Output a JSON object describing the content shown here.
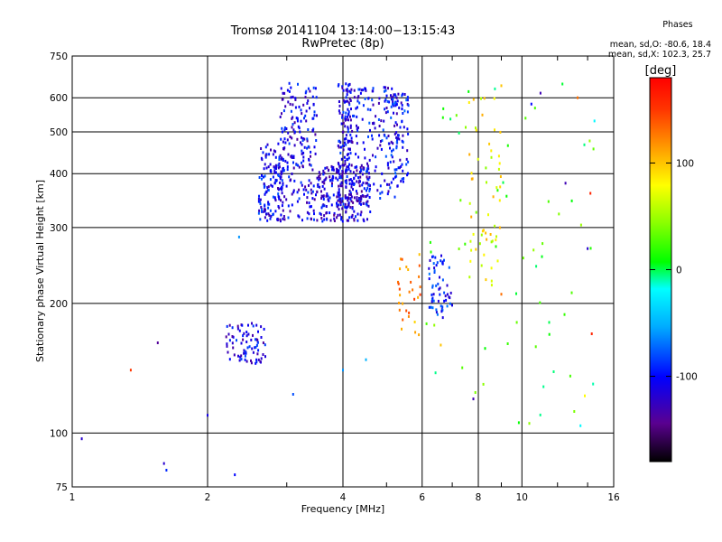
{
  "chart_data": {
    "type": "scatter",
    "title": "Tromsø 20141104  13:14:00−13:15:43",
    "subtitle": "RwPretec (8p)",
    "xlabel": "Frequency [MHz]",
    "ylabel": "Stationary phase Virtual Height [km]",
    "x_scale": "log",
    "y_scale": "log",
    "xlim": [
      1,
      16
    ],
    "ylim": [
      75,
      750
    ],
    "x_ticks": [
      1,
      2,
      4,
      6,
      8,
      10,
      16
    ],
    "y_ticks": [
      75,
      100,
      200,
      300,
      400,
      500,
      600,
      750
    ],
    "grid": true,
    "colorbar": {
      "label": "[deg]",
      "ticks": [
        100,
        0,
        -100
      ],
      "range": [
        -180,
        180
      ]
    },
    "phase_stats": {
      "header": "Phases",
      "line_o": "mean, sd,O: -80.6, 18.4",
      "line_x": "mean, sd,X: 102.3, 25.7"
    },
    "clusters": [
      {
        "freq": [
          2.6,
          2.95
        ],
        "height": [
          310,
          470
        ],
        "phase": -105,
        "n": 140
      },
      {
        "freq": [
          2.9,
          3.5
        ],
        "height": [
          310,
          650
        ],
        "phase": -110,
        "n": 200
      },
      {
        "freq": [
          3.5,
          4.6
        ],
        "height": [
          310,
          420
        ],
        "phase": -115,
        "n": 220
      },
      {
        "freq": [
          3.9,
          4.2
        ],
        "height": [
          330,
          650
        ],
        "phase": -110,
        "n": 150
      },
      {
        "freq": [
          4.2,
          5.3
        ],
        "height": [
          350,
          640
        ],
        "phase": -105,
        "n": 160
      },
      {
        "freq": [
          5.1,
          5.6
        ],
        "height": [
          380,
          620
        ],
        "phase": -100,
        "n": 70
      },
      {
        "freq": [
          2.2,
          2.7
        ],
        "height": [
          145,
          180
        ],
        "phase": -110,
        "n": 80
      },
      {
        "freq": [
          6.2,
          7.0
        ],
        "height": [
          185,
          260
        ],
        "phase": -95,
        "n": 60
      },
      {
        "freq": [
          5.3,
          6.0
        ],
        "height": [
          165,
          260
        ],
        "phase": 120,
        "n": 30
      },
      {
        "freq": [
          7.5,
          9.0
        ],
        "height": [
          220,
          600
        ],
        "phase": 80,
        "n": 55
      },
      {
        "freq": [
          6.0,
          14.5
        ],
        "height": [
          100,
          650
        ],
        "phase": 20,
        "n": 60
      }
    ],
    "points": [
      {
        "x": 1.05,
        "y": 97,
        "phase": -120
      },
      {
        "x": 1.35,
        "y": 140,
        "phase": 150
      },
      {
        "x": 1.55,
        "y": 162,
        "phase": -140
      },
      {
        "x": 1.6,
        "y": 85,
        "phase": -120
      },
      {
        "x": 1.62,
        "y": 82,
        "phase": -90
      },
      {
        "x": 2.0,
        "y": 110,
        "phase": -110
      },
      {
        "x": 2.3,
        "y": 80,
        "phase": -100
      },
      {
        "x": 2.35,
        "y": 285,
        "phase": -60
      },
      {
        "x": 3.1,
        "y": 123,
        "phase": -80
      },
      {
        "x": 4.0,
        "y": 140,
        "phase": -60
      },
      {
        "x": 4.5,
        "y": 148,
        "phase": -50
      },
      {
        "x": 9.0,
        "y": 210,
        "phase": 130
      },
      {
        "x": 9.0,
        "y": 640,
        "phase": 100
      },
      {
        "x": 10.5,
        "y": 580,
        "phase": -100
      },
      {
        "x": 11.0,
        "y": 615,
        "phase": -130
      },
      {
        "x": 12.5,
        "y": 380,
        "phase": -130
      },
      {
        "x": 13.3,
        "y": 600,
        "phase": 130
      },
      {
        "x": 13.5,
        "y": 104,
        "phase": -20
      },
      {
        "x": 14.2,
        "y": 360,
        "phase": 160
      },
      {
        "x": 14.0,
        "y": 268,
        "phase": -120
      },
      {
        "x": 14.3,
        "y": 170,
        "phase": 160
      },
      {
        "x": 14.5,
        "y": 530,
        "phase": -20
      },
      {
        "x": 13.8,
        "y": 122,
        "phase": 80
      },
      {
        "x": 14.4,
        "y": 130,
        "phase": -10
      },
      {
        "x": 6.6,
        "y": 160,
        "phase": 100
      },
      {
        "x": 7.8,
        "y": 120,
        "phase": -130
      }
    ]
  }
}
